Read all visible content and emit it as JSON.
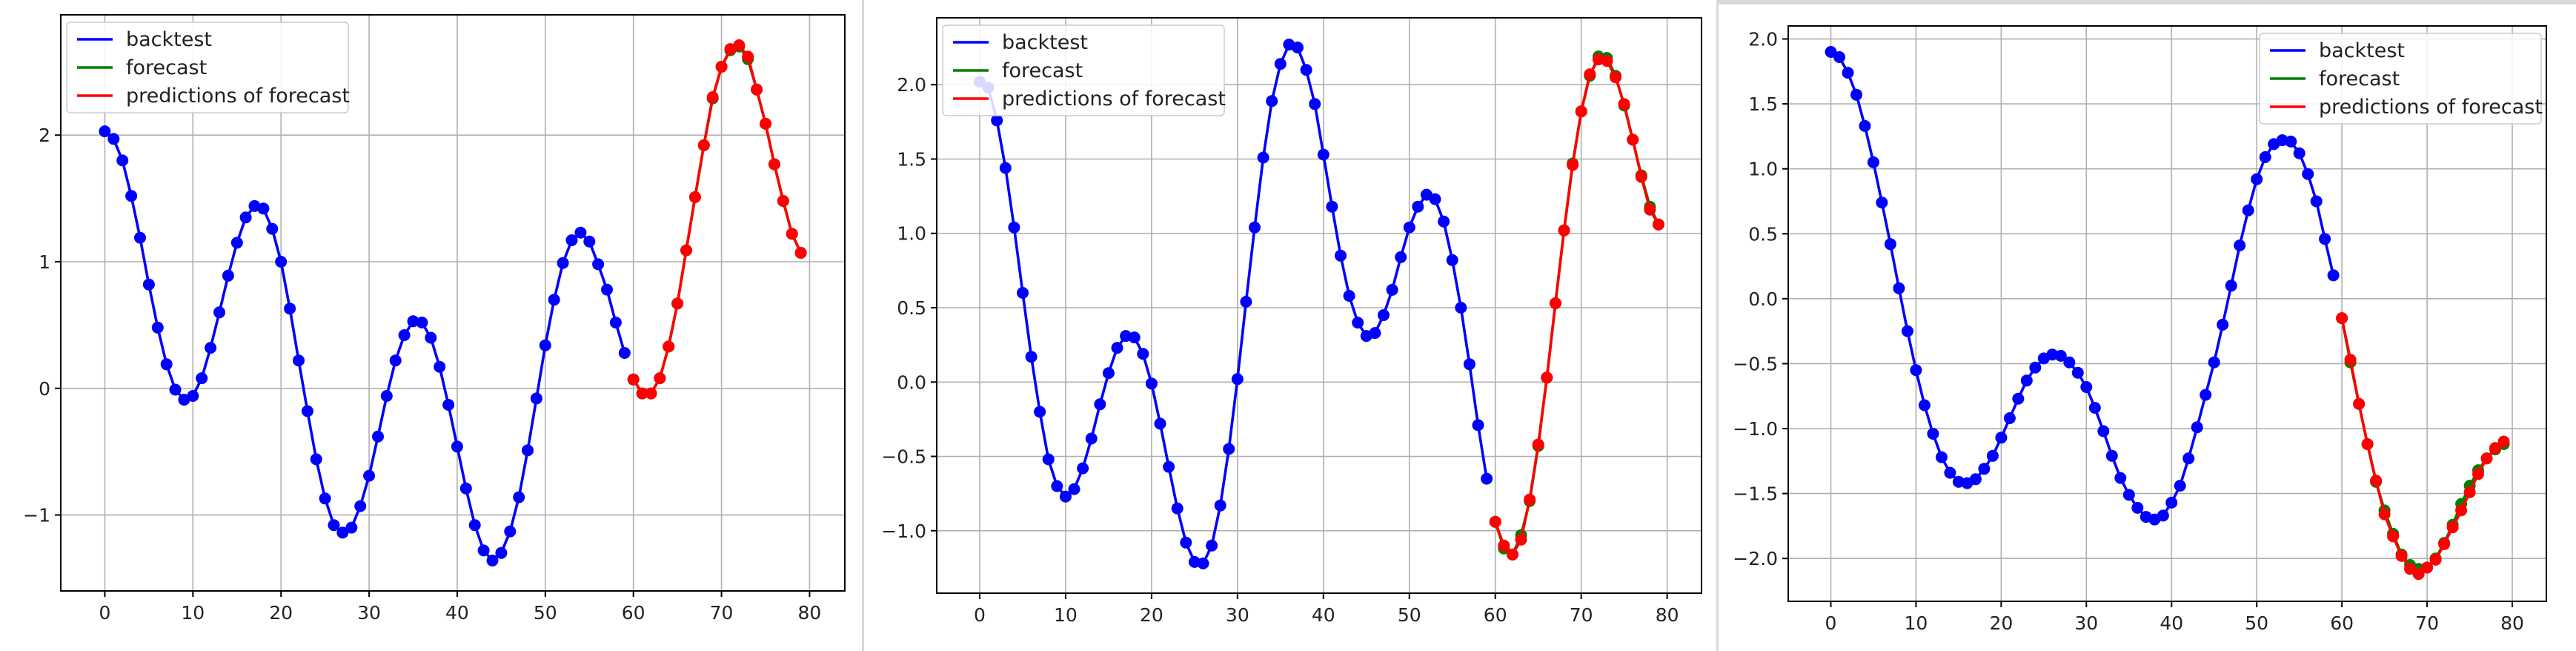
{
  "colors": {
    "backtest": "#0000ff",
    "forecast": "#008000",
    "predictions": "#ff0000",
    "grid": "#b0b0b0",
    "axes": "#000000"
  },
  "legend_labels": [
    "backtest",
    "forecast",
    "predictions of forecast"
  ],
  "chart_data": [
    {
      "type": "line",
      "title": "",
      "xlabel": "",
      "ylabel": "",
      "xlim": [
        -5,
        84
      ],
      "ylim": [
        -1.6,
        2.95
      ],
      "xticks": [
        0,
        10,
        20,
        30,
        40,
        50,
        60,
        70,
        80
      ],
      "xtick_labels": [
        "0",
        "10",
        "20",
        "30",
        "40",
        "50",
        "60",
        "70",
        "80"
      ],
      "yticks": [
        -1,
        0,
        1,
        2
      ],
      "ytick_labels": [
        "−1",
        "0",
        "1",
        "2"
      ],
      "grid": true,
      "legend_position": "upper-left",
      "markers": true,
      "series": [
        {
          "name": "backtest",
          "x": [
            0,
            1,
            2,
            3,
            4,
            5,
            6,
            7,
            8,
            9,
            10,
            11,
            12,
            13,
            14,
            15,
            16,
            17,
            18,
            19,
            20,
            21,
            22,
            23,
            24,
            25,
            26,
            27,
            28,
            29,
            30,
            31,
            32,
            33,
            34,
            35,
            36,
            37,
            38,
            39,
            40,
            41,
            42,
            43,
            44,
            45,
            46,
            47,
            48,
            49,
            50,
            51,
            52,
            53,
            54,
            55,
            56,
            57,
            58,
            59
          ],
          "y": [
            2.03,
            1.97,
            1.8,
            1.52,
            1.19,
            0.82,
            0.48,
            0.19,
            -0.01,
            -0.09,
            -0.06,
            0.08,
            0.32,
            0.6,
            0.89,
            1.15,
            1.35,
            1.44,
            1.42,
            1.26,
            1.0,
            0.63,
            0.22,
            -0.18,
            -0.56,
            -0.87,
            -1.08,
            -1.14,
            -1.1,
            -0.93,
            -0.69,
            -0.38,
            -0.06,
            0.22,
            0.42,
            0.53,
            0.52,
            0.4,
            0.17,
            -0.13,
            -0.46,
            -0.79,
            -1.08,
            -1.28,
            -1.36,
            -1.3,
            -1.13,
            -0.86,
            -0.49,
            -0.08,
            0.34,
            0.7,
            0.99,
            1.17,
            1.23,
            1.16,
            0.98,
            0.78,
            0.52,
            0.28
          ]
        },
        {
          "name": "forecast",
          "x": [
            60,
            61,
            62,
            63,
            64,
            65,
            66,
            67,
            68,
            69,
            70,
            71,
            72,
            73,
            74,
            75,
            76,
            77,
            78,
            79
          ],
          "y": [
            0.07,
            -0.04,
            -0.04,
            0.08,
            0.33,
            0.67,
            1.09,
            1.51,
            1.92,
            2.29,
            2.54,
            2.67,
            2.7,
            2.6,
            2.36,
            2.09,
            1.77,
            1.48,
            1.22,
            1.07
          ]
        },
        {
          "name": "predictions of forecast",
          "x": [
            60,
            61,
            62,
            63,
            64,
            65,
            66,
            67,
            68,
            69,
            70,
            71,
            72,
            73,
            74,
            75,
            76,
            77,
            78,
            79
          ],
          "y": [
            0.07,
            -0.04,
            -0.04,
            0.08,
            0.33,
            0.67,
            1.09,
            1.51,
            1.92,
            2.3,
            2.54,
            2.68,
            2.71,
            2.62,
            2.36,
            2.09,
            1.77,
            1.48,
            1.22,
            1.07
          ]
        }
      ]
    },
    {
      "type": "line",
      "title": "",
      "xlabel": "",
      "ylabel": "",
      "xlim": [
        -5,
        84
      ],
      "ylim": [
        -1.42,
        2.45
      ],
      "xticks": [
        0,
        10,
        20,
        30,
        40,
        50,
        60,
        70,
        80
      ],
      "xtick_labels": [
        "0",
        "10",
        "20",
        "30",
        "40",
        "50",
        "60",
        "70",
        "80"
      ],
      "yticks": [
        -1.0,
        -0.5,
        0.0,
        0.5,
        1.0,
        1.5,
        2.0
      ],
      "ytick_labels": [
        "−1.0",
        "−0.5",
        "0.0",
        "0.5",
        "1.0",
        "1.5",
        "2.0"
      ],
      "grid": true,
      "legend_position": "upper-left",
      "markers": true,
      "series": [
        {
          "name": "backtest",
          "x": [
            0,
            1,
            2,
            3,
            4,
            5,
            6,
            7,
            8,
            9,
            10,
            11,
            12,
            13,
            14,
            15,
            16,
            17,
            18,
            19,
            20,
            21,
            22,
            23,
            24,
            25,
            26,
            27,
            28,
            29,
            30,
            31,
            32,
            33,
            34,
            35,
            36,
            37,
            38,
            39,
            40,
            41,
            42,
            43,
            44,
            45,
            46,
            47,
            48,
            49,
            50,
            51,
            52,
            53,
            54,
            55,
            56,
            57,
            58,
            59
          ],
          "y": [
            2.02,
            1.98,
            1.76,
            1.44,
            1.04,
            0.6,
            0.17,
            -0.2,
            -0.52,
            -0.7,
            -0.77,
            -0.72,
            -0.58,
            -0.38,
            -0.15,
            0.06,
            0.23,
            0.31,
            0.3,
            0.19,
            -0.01,
            -0.28,
            -0.57,
            -0.85,
            -1.08,
            -1.21,
            -1.22,
            -1.1,
            -0.83,
            -0.45,
            0.02,
            0.54,
            1.04,
            1.51,
            1.89,
            2.14,
            2.27,
            2.25,
            2.1,
            1.87,
            1.53,
            1.18,
            0.85,
            0.58,
            0.4,
            0.31,
            0.33,
            0.45,
            0.62,
            0.84,
            1.04,
            1.18,
            1.26,
            1.23,
            1.08,
            0.82,
            0.5,
            0.12,
            -0.29,
            -0.65
          ]
        },
        {
          "name": "forecast",
          "x": [
            60,
            61,
            62,
            63,
            64,
            65,
            66,
            67,
            68,
            69,
            70,
            71,
            72,
            73,
            74,
            75,
            76,
            77,
            78,
            79
          ],
          "y": [
            -0.94,
            -1.12,
            -1.16,
            -1.03,
            -0.8,
            -0.43,
            0.03,
            0.53,
            1.02,
            1.47,
            1.82,
            2.06,
            2.19,
            2.18,
            2.06,
            1.86,
            1.63,
            1.39,
            1.18,
            1.06
          ]
        },
        {
          "name": "predictions of forecast",
          "x": [
            60,
            61,
            62,
            63,
            64,
            65,
            66,
            67,
            68,
            69,
            70,
            71,
            72,
            73,
            74,
            75,
            76,
            77,
            78,
            79
          ],
          "y": [
            -0.94,
            -1.1,
            -1.16,
            -1.06,
            -0.79,
            -0.42,
            0.03,
            0.53,
            1.02,
            1.46,
            1.82,
            2.07,
            2.17,
            2.16,
            2.05,
            1.87,
            1.63,
            1.38,
            1.16,
            1.06
          ]
        }
      ]
    },
    {
      "type": "line",
      "title": "",
      "xlabel": "",
      "ylabel": "",
      "xlim": [
        -5,
        84
      ],
      "ylim": [
        -2.33,
        2.1
      ],
      "xticks": [
        0,
        10,
        20,
        30,
        40,
        50,
        60,
        70,
        80
      ],
      "xtick_labels": [
        "0",
        "10",
        "20",
        "30",
        "40",
        "50",
        "60",
        "70",
        "80"
      ],
      "yticks": [
        -2.0,
        -1.5,
        -1.0,
        -0.5,
        0.0,
        0.5,
        1.0,
        1.5,
        2.0
      ],
      "ytick_labels": [
        "−2.0",
        "−1.5",
        "−1.0",
        "−0.5",
        "0.0",
        "0.5",
        "1.0",
        "1.5",
        "2.0"
      ],
      "grid": true,
      "legend_position": "upper-right",
      "markers": true,
      "series": [
        {
          "name": "backtest",
          "x": [
            0,
            1,
            2,
            3,
            4,
            5,
            6,
            7,
            8,
            9,
            10,
            11,
            12,
            13,
            14,
            15,
            16,
            17,
            18,
            19,
            20,
            21,
            22,
            23,
            24,
            25,
            26,
            27,
            28,
            29,
            30,
            31,
            32,
            33,
            34,
            35,
            36,
            37,
            38,
            39,
            40,
            41,
            42,
            43,
            44,
            45,
            46,
            47,
            48,
            49,
            50,
            51,
            52,
            53,
            54,
            55,
            56,
            57,
            58,
            59
          ],
          "y": [
            1.9,
            1.86,
            1.74,
            1.57,
            1.33,
            1.05,
            0.74,
            0.42,
            0.08,
            -0.25,
            -0.55,
            -0.82,
            -1.04,
            -1.22,
            -1.34,
            -1.41,
            -1.42,
            -1.39,
            -1.31,
            -1.21,
            -1.07,
            -0.92,
            -0.77,
            -0.63,
            -0.53,
            -0.46,
            -0.43,
            -0.44,
            -0.49,
            -0.57,
            -0.68,
            -0.84,
            -1.02,
            -1.21,
            -1.38,
            -1.51,
            -1.61,
            -1.68,
            -1.7,
            -1.67,
            -1.57,
            -1.44,
            -1.23,
            -0.99,
            -0.74,
            -0.49,
            -0.2,
            0.1,
            0.41,
            0.68,
            0.92,
            1.09,
            1.19,
            1.22,
            1.21,
            1.12,
            0.96,
            0.75,
            0.46,
            0.18
          ]
        },
        {
          "name": "forecast",
          "x": [
            60,
            61,
            62,
            63,
            64,
            65,
            66,
            67,
            68,
            69,
            70,
            71,
            72,
            73,
            74,
            75,
            76,
            77,
            78,
            79
          ],
          "y": [
            -0.15,
            -0.49,
            -0.81,
            -1.12,
            -1.41,
            -1.63,
            -1.81,
            -1.97,
            -2.05,
            -2.08,
            -2.07,
            -2.0,
            -1.88,
            -1.74,
            -1.58,
            -1.44,
            -1.32,
            -1.23,
            -1.16,
            -1.12
          ]
        },
        {
          "name": "predictions of forecast",
          "x": [
            60,
            61,
            62,
            63,
            64,
            65,
            66,
            67,
            68,
            69,
            70,
            71,
            72,
            73,
            74,
            75,
            76,
            77,
            78,
            79
          ],
          "y": [
            -0.15,
            -0.47,
            -0.81,
            -1.12,
            -1.4,
            -1.66,
            -1.83,
            -1.98,
            -2.08,
            -2.12,
            -2.07,
            -2.01,
            -1.89,
            -1.76,
            -1.63,
            -1.49,
            -1.35,
            -1.23,
            -1.15,
            -1.1
          ]
        }
      ]
    }
  ]
}
